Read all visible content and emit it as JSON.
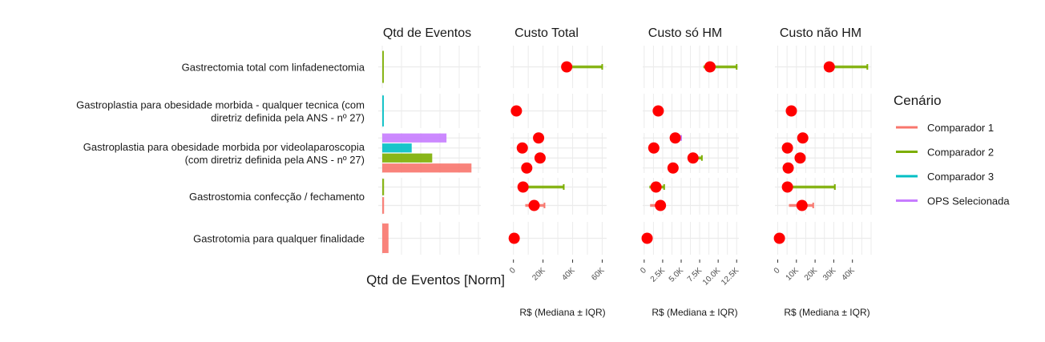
{
  "chart_data": {
    "type": "dot-range / bar (faceted)",
    "rows": [
      {
        "label": [
          "Gastrectomia total com linfadenectomia"
        ],
        "scenarios": [
          "Comparador 2"
        ]
      },
      {
        "label": [
          "Gastroplastia para obesidade morbida - qualquer tecnica (com",
          "diretriz definida pela ANS - nº 27)"
        ],
        "scenarios": [
          "Comparador 3"
        ]
      },
      {
        "label": [
          "Gastroplastia para obesidade morbida por videolaparoscopia",
          "(com diretriz definida pela ANS - nº 27)"
        ],
        "scenarios": [
          "OPS Selecionada",
          "Comparador 3",
          "Comparador 2",
          "Comparador 1"
        ]
      },
      {
        "label": [
          "Gastrostomia confecção / fechamento"
        ],
        "scenarios": [
          "Comparador 2",
          "Comparador 1"
        ]
      },
      {
        "label": [
          "Gastrotomia para qualquer finalidade"
        ],
        "scenarios": [
          "Comparador 1"
        ]
      }
    ],
    "panels": [
      {
        "title": "Qtd de Eventos",
        "type": "bar",
        "xlabel": "Qtd de Eventos [Norm]",
        "xlim": [
          0,
          1.15
        ],
        "ticks": [],
        "tick_labels": [],
        "values": [
          [
            0.01
          ],
          [
            0.01
          ],
          [
            0.72,
            0.33,
            0.56,
            1.0
          ],
          [
            0.02,
            0.02
          ],
          [
            0.07
          ]
        ]
      },
      {
        "title": "Custo Total",
        "type": "dot-range",
        "xlabel": "R$ (Mediana ± IQR)",
        "xlim": [
          -2000,
          63000
        ],
        "ticks": [
          0,
          20000,
          40000,
          60000
        ],
        "tick_labels": [
          "0",
          "20K",
          "40K",
          "60K"
        ],
        "values": [
          [
            [
              36000,
              36000,
              60000
            ]
          ],
          [
            [
              2000,
              2000,
              2000
            ]
          ],
          [
            [
              17000,
              17000,
              17000
            ],
            [
              6000,
              6000,
              6000
            ],
            [
              18000,
              18000,
              18000
            ],
            [
              9000,
              9000,
              9000
            ]
          ],
          [
            [
              6500,
              3000,
              34000
            ],
            [
              14000,
              8000,
              21000
            ]
          ],
          [
            [
              500,
              500,
              500
            ]
          ]
        ]
      },
      {
        "title": "Custo só HM",
        "type": "dot-range",
        "xlabel": "R$ (Mediana ± IQR)",
        "xlim": [
          -200,
          12800
        ],
        "ticks": [
          0,
          2500,
          5000,
          7500,
          10000,
          12500
        ],
        "tick_labels": [
          "0",
          "2.5K",
          "5.0K",
          "7.5K",
          "10.0K",
          "12.5K"
        ],
        "values": [
          [
            [
              8900,
              8000,
              12500
            ]
          ],
          [
            [
              1900,
              1900,
              1900
            ]
          ],
          [
            [
              4200,
              4200,
              5000
            ],
            [
              1300,
              1300,
              1500
            ],
            [
              6600,
              6600,
              7800
            ],
            [
              3900,
              3900,
              3900
            ]
          ],
          [
            [
              1600,
              700,
              2700
            ],
            [
              2200,
              800,
              2200
            ]
          ],
          [
            [
              400,
              400,
              400
            ]
          ]
        ]
      },
      {
        "title": "Custo não HM",
        "type": "dot-range",
        "xlabel": "R$ (Mediana ± IQR)",
        "xlim": [
          -1500,
          50000
        ],
        "ticks": [
          0,
          10000,
          20000,
          30000,
          40000
        ],
        "tick_labels": [
          "0",
          "10K",
          "20K",
          "30K",
          "40K"
        ],
        "values": [
          [
            [
              27600,
              27600,
              48000
            ]
          ],
          [
            [
              7300,
              7300,
              7300
            ]
          ],
          [
            [
              13400,
              13400,
              13400
            ],
            [
              5200,
              5200,
              5200
            ],
            [
              12000,
              12000,
              12000
            ],
            [
              5600,
              5600,
              5600
            ]
          ],
          [
            [
              5200,
              5200,
              30600
            ],
            [
              13000,
              6000,
              19000
            ]
          ],
          [
            [
              900,
              900,
              900
            ]
          ]
        ]
      }
    ],
    "legend": {
      "title": "Cenário",
      "position": "right",
      "items": [
        {
          "label": "Comparador 1",
          "color": "#F8766D"
        },
        {
          "label": "Comparador 2",
          "color": "#7CAE00"
        },
        {
          "label": "Comparador 3",
          "color": "#00BFC4"
        },
        {
          "label": "OPS Selecionada",
          "color": "#C77CFF"
        }
      ]
    },
    "point_color": "#FF0000"
  }
}
